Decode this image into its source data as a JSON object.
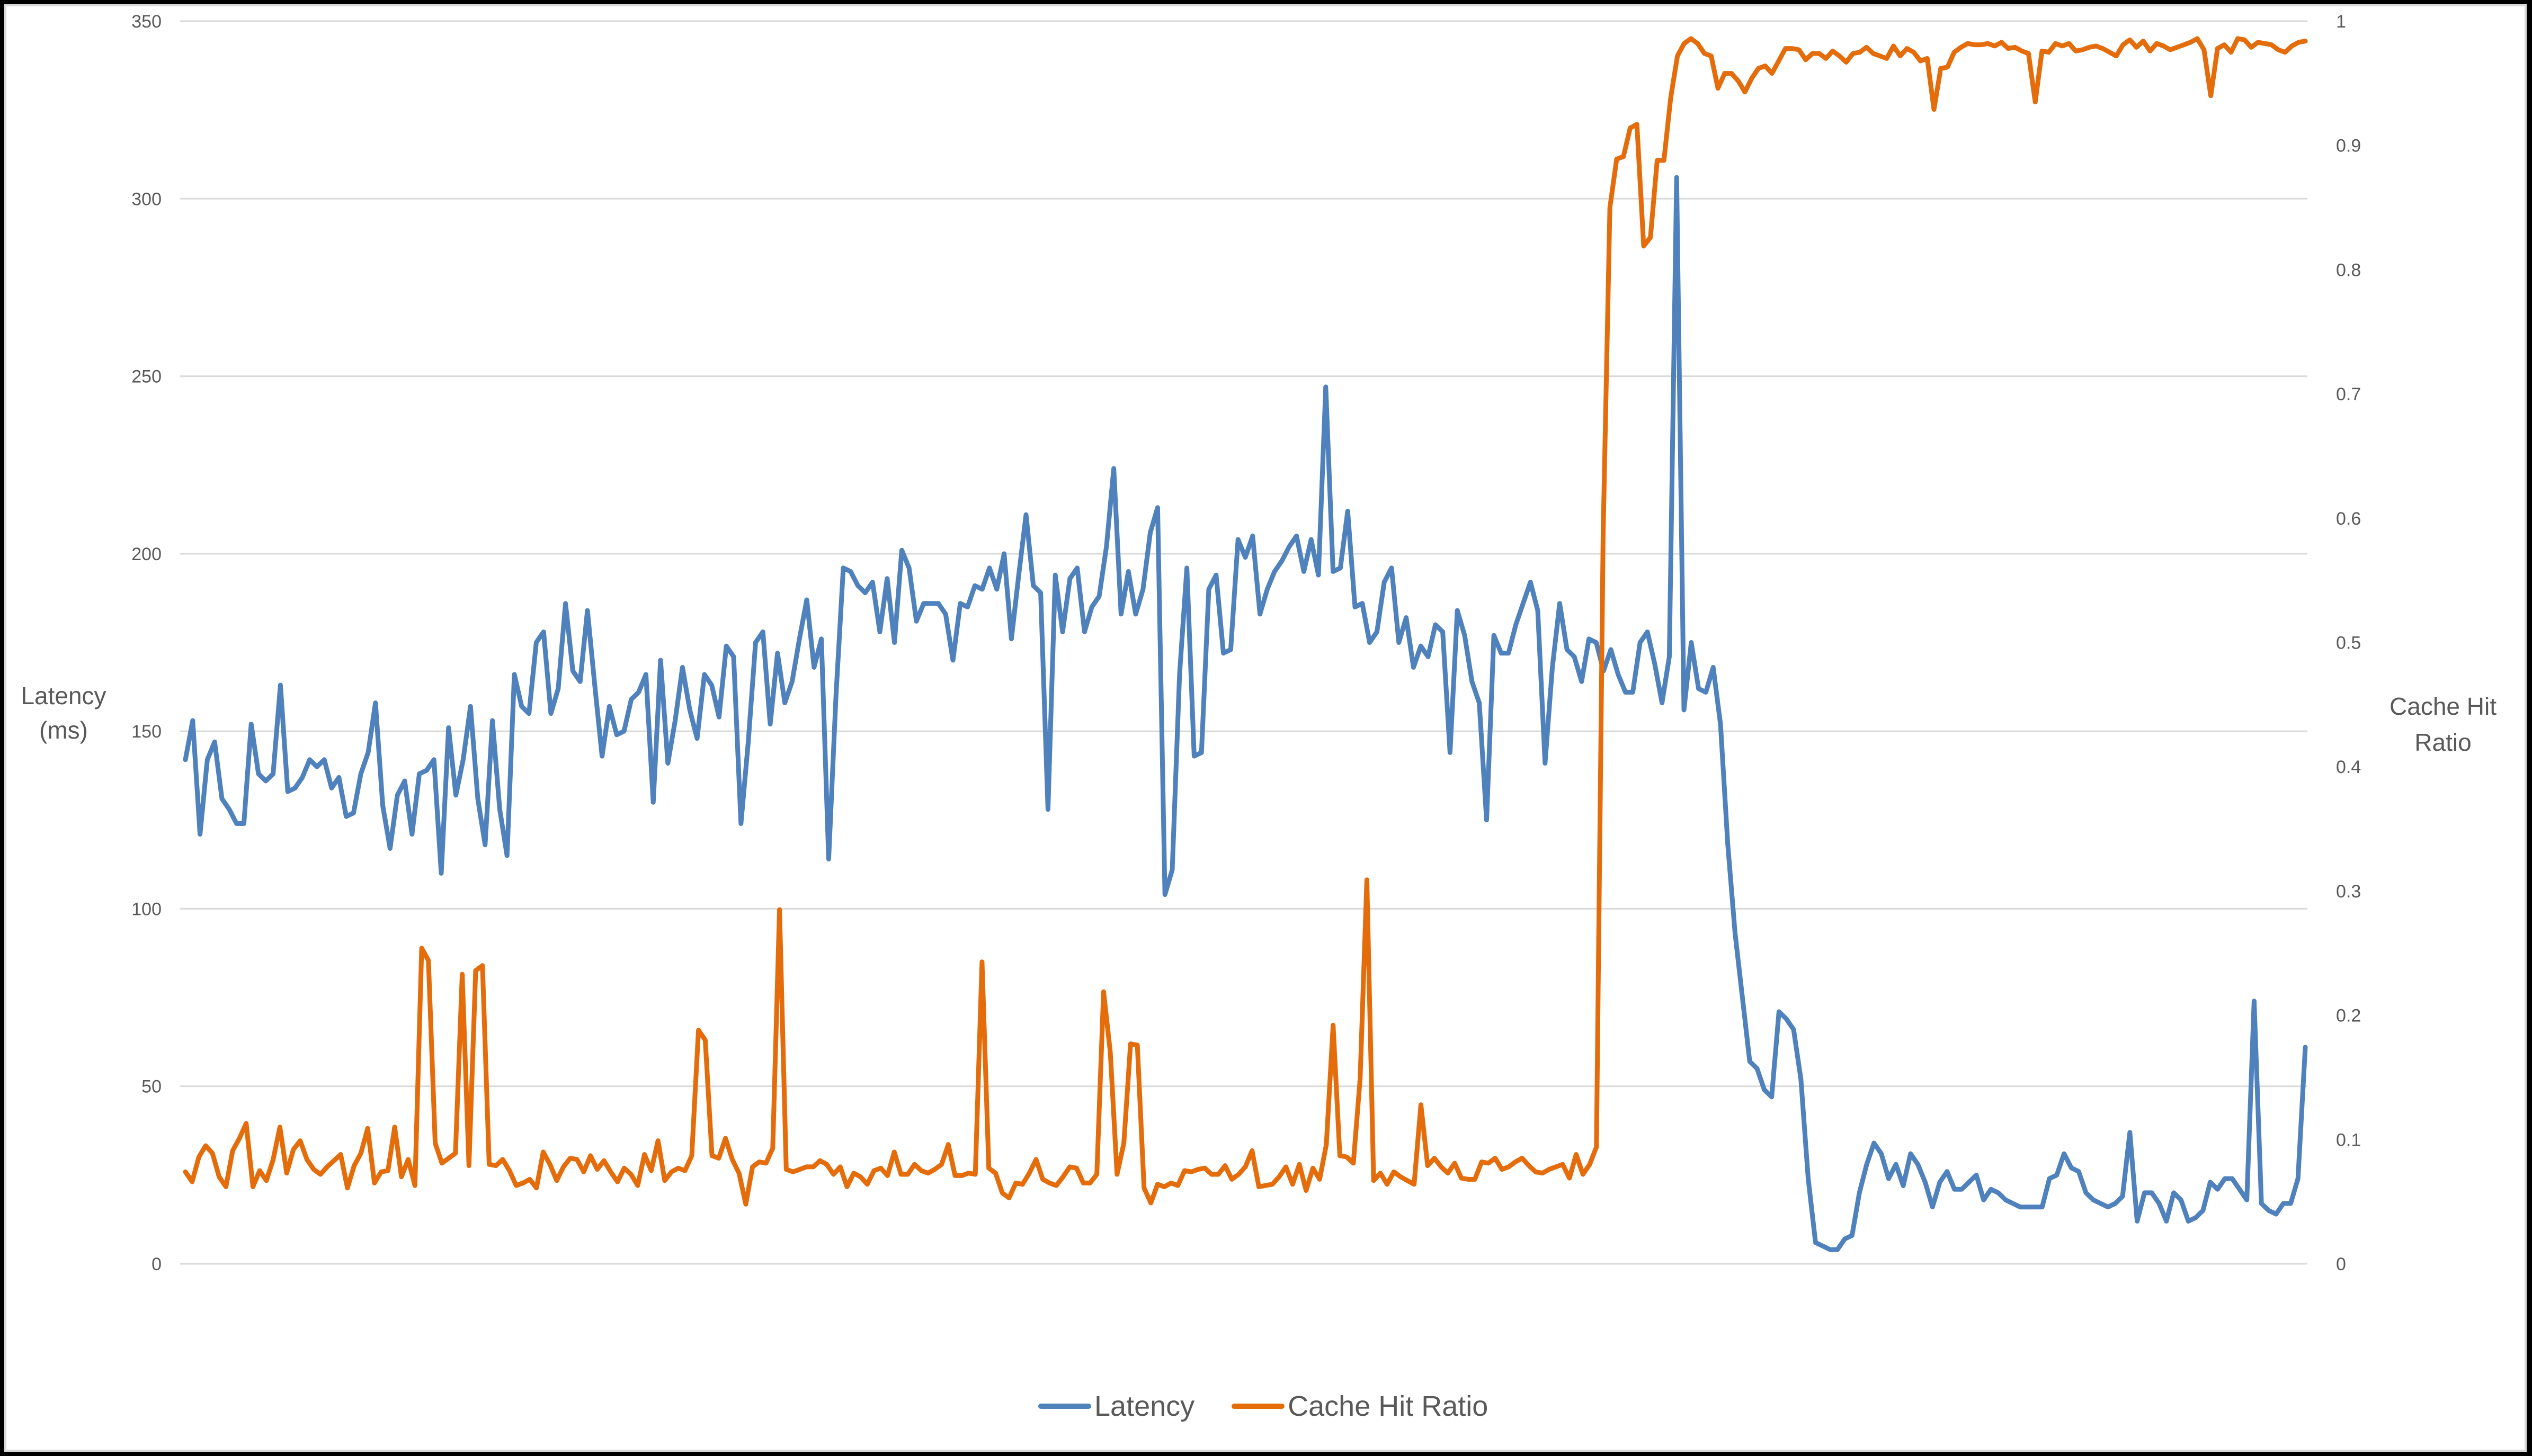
{
  "chart_data": {
    "type": "line",
    "title": "",
    "xlabel": "",
    "ylabel": "Latency (ms)",
    "y2label": "Cache Hit Ratio",
    "ylim": [
      0,
      350
    ],
    "y2lim": [
      0,
      1
    ],
    "yticks": [
      "0",
      "50",
      "100",
      "150",
      "200",
      "250",
      "300",
      "350"
    ],
    "y2ticks": [
      "0",
      "0.1",
      "0.2",
      "0.3",
      "0.4",
      "0.5",
      "0.6",
      "0.7",
      "0.8",
      "0.9",
      "1"
    ],
    "grid": true,
    "legend_position": "bottom",
    "series": [
      {
        "name": "Latency",
        "axis": "left",
        "color": "#4F81BD",
        "values": [
          142,
          153,
          121,
          142,
          147,
          131,
          128,
          124,
          124,
          152,
          138,
          136,
          138,
          163,
          133,
          134,
          137,
          142,
          140,
          142,
          134,
          137,
          126,
          127,
          138,
          144,
          158,
          129,
          117,
          132,
          136,
          121,
          138,
          139,
          142,
          110,
          151,
          132,
          142,
          157,
          131,
          118,
          153,
          128,
          115,
          166,
          157,
          155,
          175,
          178,
          155,
          162,
          186,
          167,
          164,
          184,
          163,
          143,
          157,
          149,
          150,
          159,
          161,
          166,
          130,
          170,
          141,
          153,
          168,
          156,
          148,
          166,
          163,
          154,
          174,
          171,
          124,
          147,
          175,
          178,
          152,
          172,
          158,
          164,
          176,
          187,
          168,
          176,
          114,
          160,
          196,
          195,
          191,
          189,
          192,
          178,
          193,
          175,
          201,
          196,
          181,
          186,
          186,
          186,
          183,
          170,
          186,
          185,
          191,
          190,
          196,
          190,
          200,
          176,
          194,
          211,
          191,
          189,
          128,
          194,
          178,
          193,
          196,
          178,
          185,
          188,
          202,
          224,
          183,
          195,
          183,
          190,
          206,
          213,
          104,
          111,
          166,
          196,
          143,
          144,
          190,
          194,
          172,
          173,
          204,
          199,
          205,
          183,
          190,
          195,
          198,
          202,
          205,
          195,
          204,
          194,
          247,
          195,
          196,
          212,
          185,
          186,
          175,
          178,
          192,
          196,
          175,
          182,
          168,
          174,
          171,
          180,
          178,
          144,
          184,
          177,
          164,
          158,
          125,
          177,
          172,
          172,
          180,
          186,
          192,
          184,
          141,
          168,
          186,
          173,
          171,
          164,
          176,
          175,
          167,
          173,
          166,
          161,
          161,
          175,
          178,
          169,
          158,
          171,
          306,
          156,
          175,
          162,
          161,
          168,
          152,
          118,
          93,
          75,
          57,
          55,
          49,
          47,
          71,
          69,
          66,
          52,
          24,
          6,
          5,
          4,
          4,
          7,
          8,
          20,
          28,
          34,
          31,
          24,
          28,
          22,
          31,
          28,
          23,
          16,
          23,
          26,
          21,
          21,
          23,
          25,
          18,
          21,
          20,
          18,
          17,
          16,
          16,
          16,
          16,
          24,
          25,
          31,
          27,
          26,
          20,
          18,
          17,
          16,
          17,
          19,
          37,
          12,
          20,
          20,
          17,
          12,
          20,
          18,
          12,
          13,
          15,
          23,
          21,
          24,
          24,
          21,
          18,
          74,
          17,
          15,
          14,
          17,
          17,
          24,
          61
        ]
      },
      {
        "name": "Cache Hit Ratio",
        "axis": "right",
        "color": "#E46C0A",
        "values": [
          0.074,
          0.066,
          0.086,
          0.095,
          0.089,
          0.07,
          0.062,
          0.091,
          0.101,
          0.113,
          0.062,
          0.075,
          0.067,
          0.084,
          0.11,
          0.073,
          0.092,
          0.099,
          0.084,
          0.076,
          0.072,
          0.078,
          0.083,
          0.088,
          0.061,
          0.079,
          0.089,
          0.109,
          0.065,
          0.074,
          0.075,
          0.11,
          0.07,
          0.084,
          0.063,
          0.254,
          0.244,
          0.097,
          0.081,
          0.085,
          0.089,
          0.233,
          0.079,
          0.236,
          0.24,
          0.08,
          0.079,
          0.084,
          0.075,
          0.063,
          0.065,
          0.068,
          0.061,
          0.09,
          0.08,
          0.067,
          0.078,
          0.085,
          0.084,
          0.074,
          0.087,
          0.076,
          0.083,
          0.074,
          0.066,
          0.077,
          0.072,
          0.063,
          0.088,
          0.075,
          0.099,
          0.067,
          0.074,
          0.077,
          0.075,
          0.087,
          0.188,
          0.18,
          0.087,
          0.085,
          0.101,
          0.084,
          0.073,
          0.048,
          0.078,
          0.082,
          0.081,
          0.093,
          0.285,
          0.076,
          0.074,
          0.076,
          0.078,
          0.078,
          0.083,
          0.08,
          0.072,
          0.078,
          0.062,
          0.073,
          0.07,
          0.064,
          0.075,
          0.077,
          0.071,
          0.09,
          0.072,
          0.072,
          0.08,
          0.075,
          0.073,
          0.076,
          0.08,
          0.096,
          0.071,
          0.071,
          0.073,
          0.072,
          0.243,
          0.077,
          0.073,
          0.057,
          0.053,
          0.065,
          0.064,
          0.073,
          0.084,
          0.068,
          0.065,
          0.063,
          0.07,
          0.078,
          0.077,
          0.065,
          0.065,
          0.072,
          0.219,
          0.17,
          0.072,
          0.097,
          0.177,
          0.176,
          0.061,
          0.049,
          0.064,
          0.062,
          0.065,
          0.063,
          0.075,
          0.074,
          0.076,
          0.077,
          0.072,
          0.072,
          0.079,
          0.068,
          0.072,
          0.078,
          0.091,
          0.062,
          0.063,
          0.064,
          0.07,
          0.078,
          0.064,
          0.08,
          0.059,
          0.077,
          0.068,
          0.096,
          0.192,
          0.087,
          0.086,
          0.081,
          0.149,
          0.309,
          0.067,
          0.073,
          0.064,
          0.074,
          0.07,
          0.067,
          0.064,
          0.128,
          0.079,
          0.085,
          0.078,
          0.073,
          0.081,
          0.069,
          0.068,
          0.068,
          0.082,
          0.081,
          0.085,
          0.076,
          0.078,
          0.082,
          0.085,
          0.079,
          0.074,
          0.073,
          0.076,
          0.078,
          0.08,
          0.069,
          0.088,
          0.072,
          0.08,
          0.094,
          0.588,
          0.85,
          0.889,
          0.891,
          0.914,
          0.917,
          0.819,
          0.826,
          0.888,
          0.888,
          0.938,
          0.972,
          0.982,
          0.986,
          0.982,
          0.974,
          0.972,
          0.946,
          0.958,
          0.958,
          0.952,
          0.943,
          0.954,
          0.962,
          0.964,
          0.958,
          0.968,
          0.978,
          0.978,
          0.977,
          0.969,
          0.974,
          0.974,
          0.97,
          0.976,
          0.972,
          0.967,
          0.974,
          0.975,
          0.979,
          0.974,
          0.972,
          0.97,
          0.98,
          0.972,
          0.978,
          0.975,
          0.968,
          0.97,
          0.929,
          0.962,
          0.963,
          0.975,
          0.979,
          0.982,
          0.981,
          0.981,
          0.982,
          0.98,
          0.983,
          0.978,
          0.979,
          0.976,
          0.974,
          0.935,
          0.976,
          0.975,
          0.982,
          0.98,
          0.982,
          0.976,
          0.977,
          0.979,
          0.98,
          0.978,
          0.975,
          0.972,
          0.981,
          0.985,
          0.979,
          0.984,
          0.976,
          0.982,
          0.98,
          0.977,
          0.979,
          0.981,
          0.983,
          0.986,
          0.977,
          0.94,
          0.978,
          0.981,
          0.975,
          0.986,
          0.985,
          0.979,
          0.983,
          0.982,
          0.981,
          0.977,
          0.975,
          0.98,
          0.983,
          0.984
        ]
      }
    ]
  },
  "axes": {
    "left_title_line1": "Latency",
    "left_title_line2": "(ms)",
    "right_title_line1": "Cache Hit",
    "right_title_line2": "Ratio"
  },
  "legend": {
    "items": [
      {
        "label": "Latency",
        "color": "#4F81BD"
      },
      {
        "label": "Cache Hit Ratio",
        "color": "#E46C0A"
      }
    ]
  }
}
